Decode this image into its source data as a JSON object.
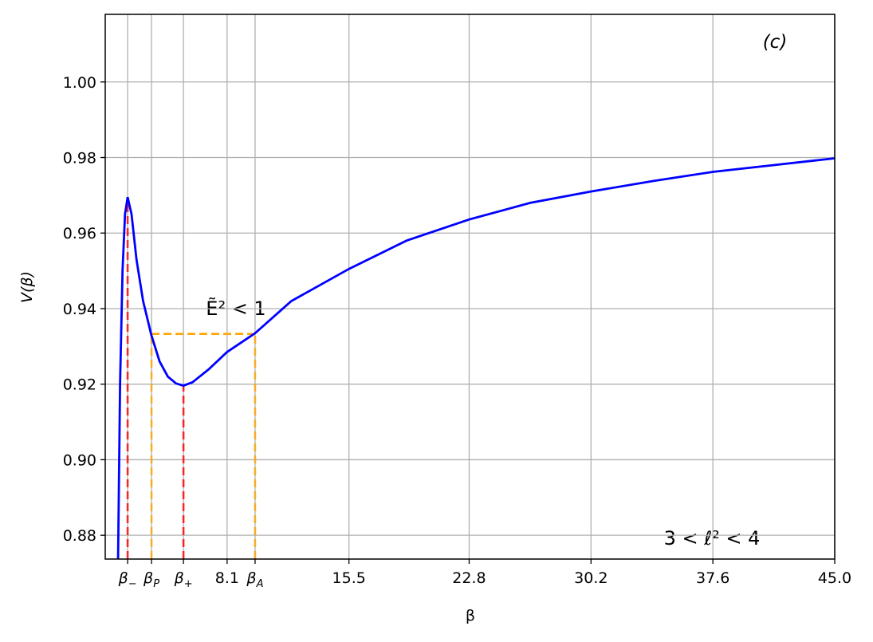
{
  "chart_data": {
    "type": "line",
    "xlabel": "β",
    "ylabel": "V(β)",
    "annotations": [
      "(c)",
      "Ẽ² < 1",
      "3 < ℓ² < 4"
    ],
    "x": [
      1.48,
      1.6,
      1.75,
      1.9,
      2.06,
      2.3,
      2.6,
      3.0,
      3.5,
      4.0,
      4.5,
      5.0,
      5.45,
      6.0,
      7.0,
      8.1,
      9.8,
      12,
      15.5,
      19,
      22.8,
      26.5,
      30.2,
      34,
      37.6,
      41.3,
      45
    ],
    "values": [
      0.8737,
      0.92,
      0.95,
      0.965,
      0.9695,
      0.965,
      0.953,
      0.942,
      0.933,
      0.926,
      0.922,
      0.9202,
      0.9196,
      0.9205,
      0.924,
      0.9285,
      0.9335,
      0.942,
      0.9505,
      0.958,
      0.9636,
      0.968,
      0.971,
      0.9738,
      0.9762,
      0.978,
      0.9798
    ],
    "color": "#0000ff",
    "guides": [
      {
        "x": 2.06,
        "y": 0.9695,
        "color": "#ff0000"
      },
      {
        "x": 3.51,
        "y": 0.9333,
        "color": "#ffa500"
      },
      {
        "x": 5.45,
        "y": 0.9196,
        "color": "#ff0000"
      },
      {
        "x": 9.8,
        "y": 0.9333,
        "color": "#ffa500"
      }
    ],
    "xlim": [
      0.7,
      45
    ],
    "ylim": [
      0.8737,
      1.0179
    ],
    "xticks": [
      {
        "value": 2.06,
        "label": "β−"
      },
      {
        "value": 3.51,
        "label": "βP"
      },
      {
        "value": 5.45,
        "label": "β+"
      },
      8.1,
      {
        "value": 9.8,
        "label": "βA"
      },
      15.5,
      22.8,
      30.2,
      37.6,
      {
        "value": 45,
        "label": "45.0"
      }
    ],
    "yticks": [
      0.88,
      {
        "value": 0.9,
        "label": "0.90"
      },
      0.92,
      0.94,
      0.96,
      0.98,
      {
        "value": 1,
        "label": "1.00"
      }
    ],
    "grid": true
  }
}
